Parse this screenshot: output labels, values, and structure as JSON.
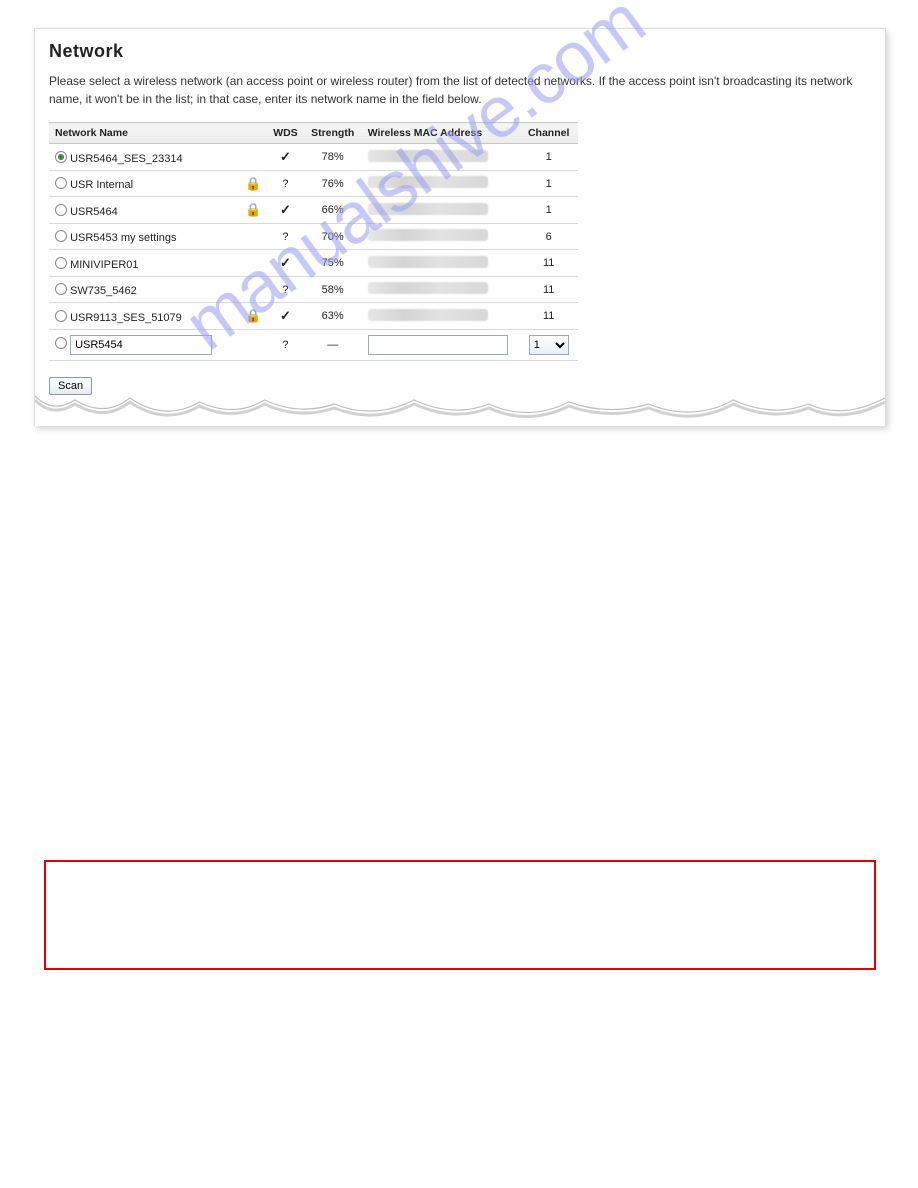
{
  "panel": {
    "title": "Network",
    "description": "Please select a wireless network (an access point or wireless router) from the list of detected networks. If the access point isn't broadcasting its network name, it won't be in the list; in that case, enter its network name in the field below."
  },
  "columns": {
    "name": "Network Name",
    "wds": "WDS",
    "strength": "Strength",
    "mac": "Wireless MAC Address",
    "channel": "Channel"
  },
  "networks": [
    {
      "selected": true,
      "name": "USR5464_SES_23314",
      "locked": false,
      "wds": "✓",
      "strength": "78%",
      "channel": "1"
    },
    {
      "selected": false,
      "name": "USR Internal",
      "locked": true,
      "wds": "?",
      "strength": "76%",
      "channel": "1"
    },
    {
      "selected": false,
      "name": "USR5464",
      "locked": true,
      "wds": "✓",
      "strength": "66%",
      "channel": "1"
    },
    {
      "selected": false,
      "name": "USR5453 my settings",
      "locked": false,
      "wds": "?",
      "strength": "70%",
      "channel": "6"
    },
    {
      "selected": false,
      "name": "MINIVIPER01",
      "locked": false,
      "wds": "✓",
      "strength": "75%",
      "channel": "11"
    },
    {
      "selected": false,
      "name": "SW735_5462",
      "locked": false,
      "wds": "?",
      "strength": "58%",
      "channel": "11"
    },
    {
      "selected": false,
      "name": "USR9113_SES_51079",
      "locked": true,
      "wds": "✓",
      "strength": "63%",
      "channel": "11"
    }
  ],
  "manual": {
    "name_value": "USR5454",
    "wds": "?",
    "strength": "—",
    "channel_value": "1"
  },
  "scan_label": "Scan",
  "watermark_text": "manualshive.com",
  "colors": {
    "panel_border": "#dcdcdc",
    "header_bg": "#ececec",
    "row_border": "#d8d8d8",
    "lock_color": "#5fbf3f",
    "red_box": "#e20000",
    "watermark": "#9d9df2"
  }
}
